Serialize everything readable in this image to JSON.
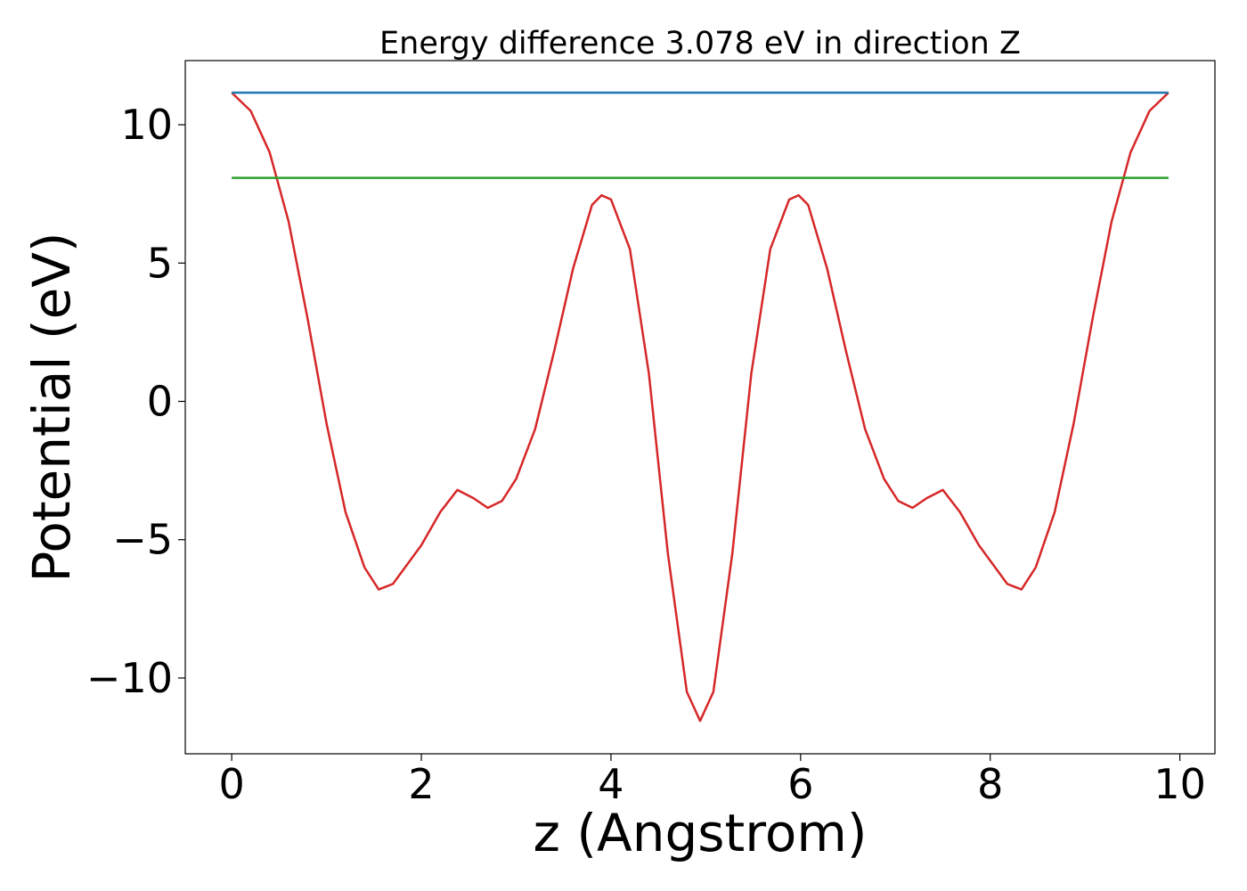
{
  "chart_data": {
    "type": "line",
    "title": "Energy difference 3.078 eV in direction Z",
    "xlabel": "z (Angstrom)",
    "ylabel": "Potential (eV)",
    "xlim": [
      -0.49,
      10.37
    ],
    "ylim": [
      -12.74,
      12.32
    ],
    "xticks": [
      0,
      2,
      4,
      6,
      8,
      10
    ],
    "yticks": [
      {
        "value": -10,
        "label": "−10"
      },
      {
        "value": -5,
        "label": "−5"
      },
      0,
      5,
      10
    ],
    "series": [
      {
        "color": "#d62728",
        "x": [
          0,
          0.2,
          0.4,
          0.6,
          0.8,
          1.0,
          1.2,
          1.4,
          1.55,
          1.7,
          2.0,
          2.2,
          2.38,
          2.55,
          2.7,
          2.85,
          3.0,
          3.2,
          3.4,
          3.6,
          3.8,
          3.9,
          4.0,
          4.2,
          4.4,
          4.6,
          4.8,
          4.94,
          5.08,
          5.28,
          5.48,
          5.68,
          5.88,
          5.98,
          6.08,
          6.28,
          6.48,
          6.68,
          6.88,
          7.03,
          7.18,
          7.33,
          7.5,
          7.68,
          7.88,
          8.18,
          8.33,
          8.48,
          8.68,
          8.88,
          9.08,
          9.28,
          9.48,
          9.68,
          9.88
        ],
        "values": [
          11.16,
          10.5,
          9.0,
          6.5,
          3.0,
          -0.8,
          -4.0,
          -6.0,
          -6.8,
          -6.6,
          -5.2,
          -4.0,
          -3.2,
          -3.5,
          -3.85,
          -3.6,
          -2.8,
          -1.0,
          1.8,
          4.8,
          7.1,
          7.45,
          7.3,
          5.5,
          1.0,
          -5.5,
          -10.5,
          -11.55,
          -10.5,
          -5.5,
          1.0,
          5.5,
          7.3,
          7.45,
          7.1,
          4.8,
          1.8,
          -1.0,
          -2.8,
          -3.6,
          -3.85,
          -3.5,
          -3.2,
          -4.0,
          -5.2,
          -6.6,
          -6.8,
          -6.0,
          -4.0,
          -0.8,
          3.0,
          6.5,
          9.0,
          10.5,
          11.16
        ]
      },
      {
        "color": "#1f77b4",
        "x": [
          0,
          9.88
        ],
        "values": [
          11.16,
          11.16
        ]
      },
      {
        "color": "#2ca02c",
        "x": [
          0,
          9.88
        ],
        "values": [
          8.08,
          8.08
        ]
      }
    ]
  }
}
